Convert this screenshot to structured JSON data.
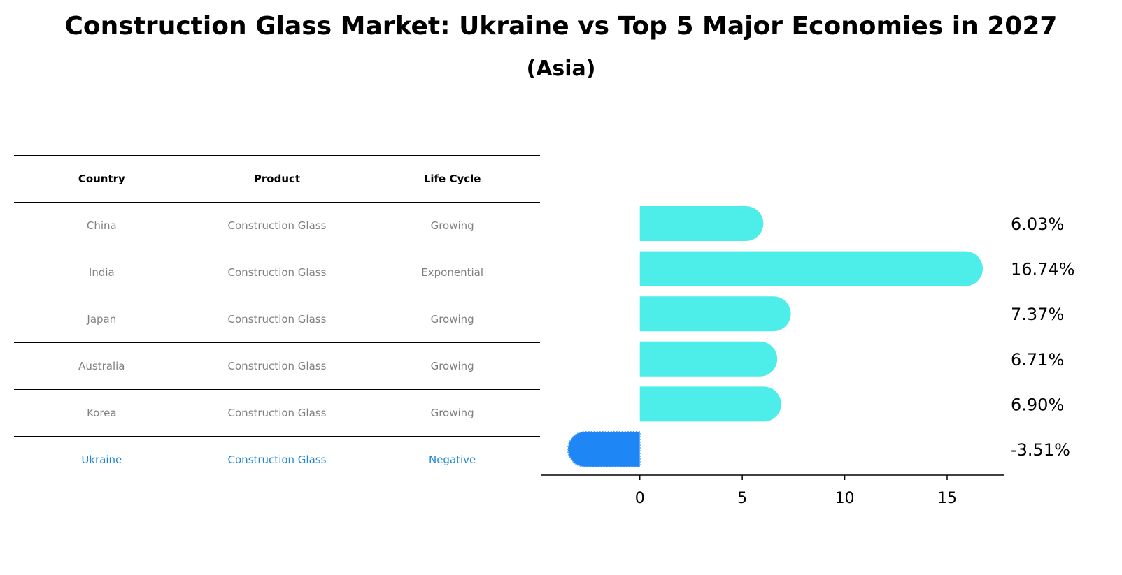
{
  "title": "Construction Glass Market: Ukraine vs Top 5 Major Economies in 2027",
  "subtitle": "(Asia)",
  "colors": {
    "positive_bar": "#4dede9",
    "negative_bar": "#1f87f5",
    "highlight_text": "#1f87d6",
    "muted_text": "#808080"
  },
  "table": {
    "headers": [
      "Country",
      "Product",
      "Life Cycle"
    ],
    "rows": [
      {
        "country": "China",
        "product": "Construction Glass",
        "life_cycle": "Growing"
      },
      {
        "country": "India",
        "product": "Construction Glass",
        "life_cycle": "Exponential"
      },
      {
        "country": "Japan",
        "product": "Construction Glass",
        "life_cycle": "Growing"
      },
      {
        "country": "Australia",
        "product": "Construction Glass",
        "life_cycle": "Growing"
      },
      {
        "country": "Korea",
        "product": "Construction Glass",
        "life_cycle": "Growing"
      },
      {
        "country": "Ukraine",
        "product": "Construction Glass",
        "life_cycle": "Negative"
      }
    ]
  },
  "chart_data": {
    "type": "bar",
    "orientation": "horizontal",
    "categories": [
      "China",
      "India",
      "Japan",
      "Australia",
      "Korea",
      "Ukraine"
    ],
    "values": [
      6.03,
      16.74,
      7.37,
      6.71,
      6.9,
      -3.51
    ],
    "value_labels": [
      "6.03%",
      "16.74%",
      "7.37%",
      "6.71%",
      "6.90%",
      "-3.51%"
    ],
    "xlim": [
      -4.6,
      17.8
    ],
    "xticks": [
      0,
      5,
      10,
      15
    ],
    "xtick_labels": [
      "0",
      "5",
      "10",
      "15"
    ],
    "highlight": "Ukraine",
    "grid": false
  }
}
